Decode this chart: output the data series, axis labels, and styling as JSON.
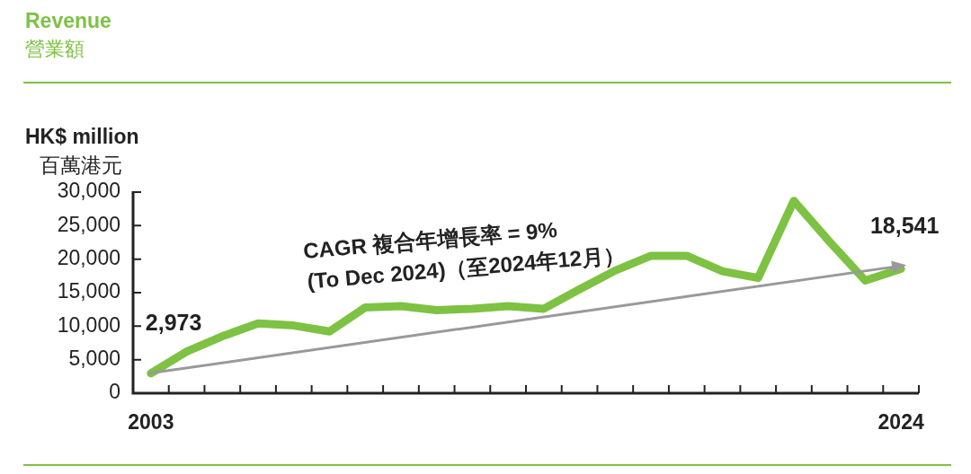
{
  "chart_data": {
    "type": "line",
    "title": "Revenue",
    "subtitle": "營業額",
    "ylabel": "HK$ million\n百萬港元",
    "x": [
      2003,
      2004,
      2005,
      2006,
      2007,
      2008,
      2009,
      2010,
      2011,
      2012,
      2013,
      2014,
      2015,
      2016,
      2017,
      2018,
      2019,
      2020,
      2021,
      2022,
      2023,
      2024
    ],
    "series": [
      {
        "color": "#7dc243",
        "values": [
          2973,
          6200,
          8500,
          10400,
          10100,
          9200,
          12800,
          13000,
          12400,
          12600,
          13000,
          12600,
          15500,
          18300,
          20500,
          20500,
          18200,
          17200,
          28700,
          22600,
          16800,
          18541
        ],
        "value_labels": [
          "2,973",
          null,
          null,
          null,
          null,
          null,
          null,
          null,
          null,
          null,
          null,
          null,
          null,
          null,
          null,
          null,
          null,
          null,
          null,
          null,
          null,
          "18,541"
        ]
      },
      {
        "type": "line",
        "color": "#999999",
        "x": [
          2003,
          2024
        ],
        "values": [
          3000,
          19000
        ]
      }
    ],
    "xlim": [
      2002.5,
      2024.5
    ],
    "xticks": [
      {
        "value": 2003,
        "label": "2003"
      },
      {
        "value": 2024,
        "label": "2024"
      },
      {
        "value": 2003.5,
        "label": null
      },
      {
        "value": 2004.5,
        "label": null
      },
      {
        "value": 2005.5,
        "label": null
      },
      {
        "value": 2006.5,
        "label": null
      },
      {
        "value": 2007.5,
        "label": null
      },
      {
        "value": 2008.5,
        "label": null
      },
      {
        "value": 2009.5,
        "label": null
      },
      {
        "value": 2010.5,
        "label": null
      },
      {
        "value": 2011.5,
        "label": null
      },
      {
        "value": 2012.5,
        "label": null
      },
      {
        "value": 2013.5,
        "label": null
      },
      {
        "value": 2014.5,
        "label": null
      },
      {
        "value": 2015.5,
        "label": null
      },
      {
        "value": 2016.5,
        "label": null
      },
      {
        "value": 2017.5,
        "label": null
      },
      {
        "value": 2018.5,
        "label": null
      },
      {
        "value": 2019.5,
        "label": null
      },
      {
        "value": 2020.5,
        "label": null
      },
      {
        "value": 2021.5,
        "label": null
      },
      {
        "value": 2022.5,
        "label": null
      },
      {
        "value": 2023.5,
        "label": null
      },
      {
        "value": 2024.5,
        "label": null
      }
    ],
    "ylim": [
      0,
      30000
    ],
    "yticks": [
      {
        "value": 0,
        "label": "0"
      },
      {
        "value": 5000,
        "label": "5,000"
      },
      {
        "value": 10000,
        "label": "10,000"
      },
      {
        "value": 15000,
        "label": "15,000"
      },
      {
        "value": 20000,
        "label": "20,000"
      },
      {
        "value": 25000,
        "label": "25,000"
      },
      {
        "value": 30000,
        "label": "30,000"
      }
    ],
    "annotations": [
      "CAGR 複合年增長率 = 9%",
      "(To Dec 2024)（至2024年12月）"
    ],
    "grid": false,
    "legend": false,
    "line_style": "solid"
  }
}
